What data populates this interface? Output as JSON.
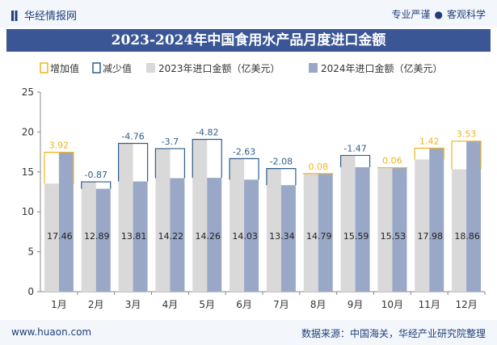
{
  "header": {
    "brand": "华经情报网",
    "slogan_1": "专业严谨",
    "slogan_2": "客观科学"
  },
  "footer": {
    "site": "www.huaon.com",
    "source": "数据来源：中国海关，华经产业研究院整理"
  },
  "colors": {
    "increase": "#f0b41e",
    "decrease": "#2f5d8a",
    "bar2023": "#d9d9d9",
    "bar2024": "#9aa8c7",
    "title_bg": "#3a5695"
  },
  "chart_data": {
    "type": "bar",
    "title": "2023-2024年中国食用水产品月度进口金额",
    "categories": [
      "1月",
      "2月",
      "3月",
      "4月",
      "5月",
      "6月",
      "7月",
      "8月",
      "9月",
      "10月",
      "11月",
      "12月"
    ],
    "series": [
      {
        "name": "2023年进口金额（亿美元）",
        "values": [
          13.54,
          13.76,
          18.57,
          17.92,
          19.08,
          16.66,
          15.42,
          14.71,
          17.06,
          15.47,
          16.56,
          15.33
        ]
      },
      {
        "name": "2024年进口金额（亿美元）",
        "values": [
          17.46,
          12.89,
          13.81,
          14.22,
          14.26,
          14.03,
          13.34,
          14.79,
          15.59,
          15.53,
          17.98,
          18.86
        ]
      }
    ],
    "changes": [
      "3.92",
      "-0.87",
      "-4.76",
      "-3.7",
      "-4.82",
      "-2.63",
      "-2.08",
      "0.08",
      "-1.47",
      "0.06",
      "1.42",
      "3.53"
    ],
    "legend": {
      "increase": "增加值",
      "decrease": "减少值"
    },
    "ylim": [
      0,
      25
    ],
    "yticks": [
      0,
      5,
      10,
      15,
      20,
      25
    ],
    "grid": false,
    "legend_position": "top-left"
  }
}
